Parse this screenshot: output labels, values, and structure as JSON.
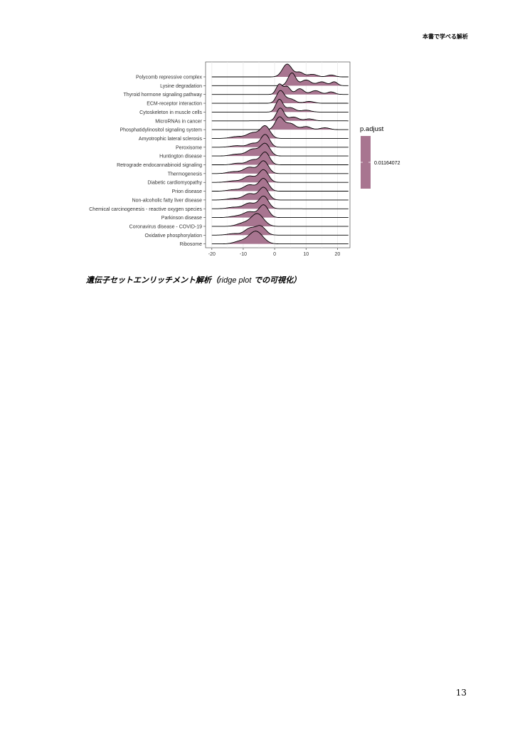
{
  "header": {
    "running_title": "本書で学べる解析"
  },
  "caption": {
    "prefix": "遺伝子セットエンリッチメント解析（",
    "latin": "ridge plot",
    "suffix": " での可視化）"
  },
  "page_number": "13",
  "chart_data": {
    "type": "ridge",
    "title": "",
    "xlabel": "",
    "ylabel": "",
    "xlim": [
      -22,
      24
    ],
    "x_ticks": [
      -20,
      -10,
      0,
      10,
      20
    ],
    "grid": true,
    "legend": {
      "title": "p.adjust",
      "label": "0.01164072",
      "placement": "right",
      "color": "#a87590"
    },
    "fill_color": "#a87590",
    "categories": [
      "Polycomb repressive complex",
      "Lysine degradation",
      "Thyroid hormone signaling pathway",
      "ECM-receptor interaction",
      "Cytoskeleton in muscle cells",
      "MicroRNAs in cancer",
      "Phosphatidylinositol signaling system",
      "Amyotrophic lateral sclerosis",
      "Peroxisome",
      "Huntington disease",
      "Retrograde endocannabinoid signaling",
      "Thermogenesis",
      "Diabetic cardiomyopathy",
      "Prion disease",
      "Non-alcoholic fatty liver disease",
      "Chemical carcinogenesis - reactive oxygen species",
      "Parkinson disease",
      "Coronavirus disease - COVID-19",
      "Oxidative phosphorylation",
      "Ribosome"
    ],
    "series": [
      {
        "name": "Polycomb repressive complex",
        "peaks": [
          [
            4,
            1.0,
            1.5
          ],
          [
            8,
            0.35,
            1.2
          ],
          [
            12,
            0.2,
            1.5
          ],
          [
            18,
            0.15,
            1.2
          ]
        ]
      },
      {
        "name": "Lysine degradation",
        "peaks": [
          [
            5.5,
            1.0,
            1.2
          ],
          [
            10,
            0.45,
            1.5
          ],
          [
            15,
            0.3,
            1.5
          ],
          [
            19,
            0.3,
            1.0
          ]
        ]
      },
      {
        "name": "Thyroid hormone signaling pathway",
        "peaks": [
          [
            1.5,
            0.8,
            1.0
          ],
          [
            4,
            0.6,
            1.0
          ],
          [
            8,
            0.45,
            1.3
          ],
          [
            13,
            0.3,
            1.5
          ],
          [
            18,
            0.2,
            1.2
          ]
        ]
      },
      {
        "name": "ECM-receptor interaction",
        "peaks": [
          [
            1.8,
            1.0,
            1.2
          ],
          [
            5,
            0.35,
            1.5
          ],
          [
            11,
            0.15,
            1.5
          ]
        ]
      },
      {
        "name": "Cytoskeleton in muscle cells",
        "peaks": [
          [
            1.5,
            1.0,
            1.1
          ],
          [
            5,
            0.35,
            1.5
          ],
          [
            10,
            0.15,
            1.5
          ]
        ]
      },
      {
        "name": "MicroRNAs in cancer",
        "peaks": [
          [
            1.8,
            1.0,
            1.2
          ],
          [
            6,
            0.3,
            1.5
          ],
          [
            11,
            0.15,
            1.5
          ]
        ]
      },
      {
        "name": "Phosphatidylinositol signaling system",
        "peaks": [
          [
            1.5,
            1.0,
            1.3
          ],
          [
            5,
            0.5,
            1.6
          ],
          [
            10,
            0.25,
            1.5
          ],
          [
            16,
            0.15,
            1.5
          ]
        ]
      },
      {
        "name": "Amyotrophic lateral sclerosis",
        "peaks": [
          [
            -3,
            1.0,
            1.5
          ],
          [
            -7,
            0.45,
            1.8
          ],
          [
            -12,
            0.15,
            2.0
          ]
        ]
      },
      {
        "name": "Peroxisome",
        "peaks": [
          [
            -3,
            1.0,
            1.4
          ],
          [
            -7,
            0.3,
            1.5
          ],
          [
            -12,
            0.12,
            2.0
          ]
        ]
      },
      {
        "name": "Huntington disease",
        "peaks": [
          [
            -3,
            1.0,
            1.5
          ],
          [
            -7,
            0.55,
            1.8
          ],
          [
            -12,
            0.15,
            2.0
          ]
        ]
      },
      {
        "name": "Retrograde endocannabinoid signaling",
        "peaks": [
          [
            -3,
            1.0,
            1.4
          ],
          [
            -7,
            0.4,
            1.8
          ],
          [
            -12,
            0.12,
            1.5
          ]
        ]
      },
      {
        "name": "Thermogenesis",
        "peaks": [
          [
            -3.5,
            1.0,
            1.5
          ],
          [
            -8,
            0.5,
            1.8
          ],
          [
            -13,
            0.15,
            2.0
          ]
        ]
      },
      {
        "name": "Diabetic cardiomyopathy",
        "peaks": [
          [
            -3.5,
            1.0,
            1.5
          ],
          [
            -8,
            0.5,
            1.8
          ],
          [
            -13,
            0.12,
            2.0
          ]
        ]
      },
      {
        "name": "Prion disease",
        "peaks": [
          [
            -3.5,
            1.0,
            1.5
          ],
          [
            -8,
            0.5,
            1.8
          ],
          [
            -13,
            0.12,
            2.0
          ]
        ]
      },
      {
        "name": "Non-alcoholic fatty liver disease",
        "peaks": [
          [
            -3.5,
            1.0,
            1.5
          ],
          [
            -8,
            0.5,
            1.8
          ],
          [
            -13,
            0.12,
            2.0
          ]
        ]
      },
      {
        "name": "Chemical carcinogenesis - reactive oxygen species",
        "peaks": [
          [
            -3.5,
            1.0,
            1.5
          ],
          [
            -8,
            0.45,
            1.8
          ],
          [
            -13,
            0.12,
            2.0
          ]
        ]
      },
      {
        "name": "Parkinson disease",
        "peaks": [
          [
            -3.5,
            1.0,
            1.5
          ],
          [
            -8,
            0.45,
            1.8
          ],
          [
            -12,
            0.12,
            2.0
          ]
        ]
      },
      {
        "name": "Coronavirus disease - COVID-19",
        "peaks": [
          [
            -5.5,
            1.0,
            2.0
          ],
          [
            -10,
            0.25,
            2.0
          ]
        ]
      },
      {
        "name": "Oxidative phosphorylation",
        "peaks": [
          [
            -4.5,
            0.7,
            1.6
          ],
          [
            -8,
            0.5,
            1.6
          ],
          [
            -13,
            0.12,
            2.0
          ]
        ]
      },
      {
        "name": "Ribosome",
        "peaks": [
          [
            -6,
            1.0,
            2.2
          ],
          [
            -11,
            0.2,
            2.0
          ]
        ]
      }
    ]
  }
}
